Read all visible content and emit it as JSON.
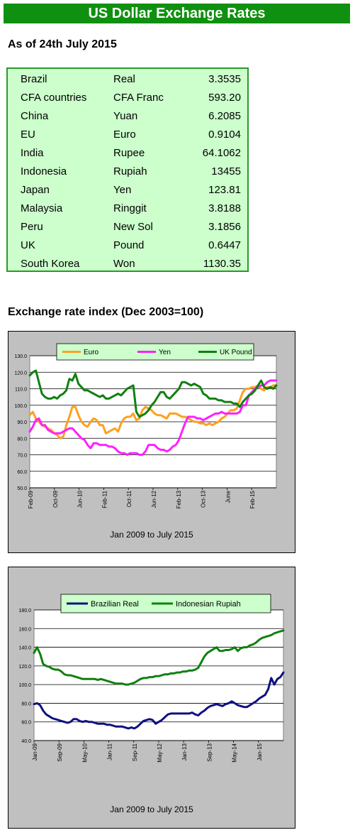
{
  "header": {
    "title": "US Dollar Exchange Rates",
    "as_of": "As of 24th July 2015"
  },
  "rates": [
    {
      "country": "Brazil",
      "currency": "Real",
      "rate": "3.3535"
    },
    {
      "country": "CFA countries",
      "currency": "CFA Franc",
      "rate": "593.20"
    },
    {
      "country": "China",
      "currency": "Yuan",
      "rate": "6.2085"
    },
    {
      "country": "EU",
      "currency": "Euro",
      "rate": "0.9104"
    },
    {
      "country": "India",
      "currency": "Rupee",
      "rate": "64.1062"
    },
    {
      "country": "Indonesia",
      "currency": "Rupiah",
      "rate": "13455"
    },
    {
      "country": "Japan",
      "currency": "Yen",
      "rate": "123.81"
    },
    {
      "country": "Malaysia",
      "currency": "Ringgit",
      "rate": "3.8188"
    },
    {
      "country": "Peru",
      "currency": "New Sol",
      "rate": "3.1856"
    },
    {
      "country": "UK",
      "currency": "Pound",
      "rate": "0.6447"
    },
    {
      "country": "South Korea",
      "currency": "Won",
      "rate": "1130.35"
    }
  ],
  "index_title": "Exchange rate index (Dec 2003=100)",
  "chart_data": [
    {
      "type": "line",
      "xlabel": "Jan 2009 to July 2015",
      "x_tick_labels": [
        "Feb-09",
        "Oct-09",
        "Jun-10",
        "Feb-11",
        "Oct-11",
        "Jun-12",
        "Feb-13",
        "Oct-13",
        "June",
        "Feb-15"
      ],
      "ylim": [
        50,
        130
      ],
      "y_ticks": [
        "130.0",
        "120.0",
        "110.0",
        "100.0",
        "90.0",
        "80.0",
        "70.0",
        "60.0",
        "50.0"
      ],
      "grid": true,
      "legend": "top",
      "series": [
        {
          "name": "Euro",
          "color": "#ffa020",
          "values": [
            94,
            96,
            92,
            90,
            88,
            87,
            86,
            85,
            83,
            82,
            80,
            81,
            88,
            93,
            99,
            99,
            94,
            90,
            88,
            87,
            90,
            92,
            91,
            88,
            88,
            83,
            84,
            85,
            86,
            84,
            89,
            92,
            93,
            93,
            95,
            91,
            92,
            97,
            99,
            98,
            97,
            95,
            94,
            94,
            93,
            92,
            95,
            95,
            95,
            94,
            93,
            93,
            92,
            91,
            90,
            90,
            89,
            89,
            88,
            89,
            88,
            89,
            90,
            92,
            93,
            95,
            97,
            97,
            98,
            103,
            108,
            110,
            110,
            111,
            111,
            112,
            110,
            109,
            111,
            111,
            112,
            112
          ]
        },
        {
          "name": "Yen",
          "color": "#ff20ff",
          "values": [
            84,
            87,
            91,
            92,
            88,
            88,
            85,
            84,
            83,
            83,
            83,
            84,
            85,
            86,
            86,
            84,
            82,
            80,
            79,
            76,
            74,
            77,
            77,
            76,
            76,
            76,
            75,
            75,
            74,
            72,
            71,
            71,
            70,
            71,
            71,
            71,
            70,
            70,
            72,
            76,
            76,
            76,
            74,
            73,
            73,
            72,
            73,
            75,
            76,
            79,
            84,
            89,
            93,
            93,
            93,
            92,
            92,
            91,
            92,
            93,
            94,
            95,
            95,
            96,
            95,
            95,
            95,
            95,
            95,
            96,
            100,
            100,
            106,
            108,
            110,
            111,
            112,
            112,
            114,
            115,
            115,
            115
          ]
        },
        {
          "name": "UK Pound",
          "color": "#108010",
          "values": [
            118,
            120,
            121,
            114,
            107,
            105,
            104,
            104,
            105,
            104,
            106,
            107,
            109,
            116,
            115,
            119,
            113,
            111,
            109,
            109,
            108,
            107,
            106,
            105,
            106,
            104,
            104,
            105,
            106,
            107,
            106,
            108,
            110,
            111,
            112,
            96,
            93,
            94,
            95,
            97,
            100,
            102,
            105,
            108,
            108,
            105,
            104,
            106,
            108,
            110,
            114,
            114,
            113,
            112,
            113,
            112,
            111,
            107,
            106,
            104,
            104,
            104,
            103,
            103,
            102,
            102,
            102,
            101,
            101,
            99,
            102,
            104,
            106,
            107,
            109,
            112,
            115,
            111,
            110,
            111,
            110,
            112
          ]
        }
      ]
    },
    {
      "type": "line",
      "xlabel": "Jan 2009 to July 2015",
      "x_tick_labels": [
        "Jan-09",
        "Sep-09",
        "May-10",
        "Jan-11",
        "Sep-11",
        "May-12",
        "Jan-13",
        "Sep-13",
        "May-14",
        "Jan-15"
      ],
      "ylim": [
        40,
        180
      ],
      "y_ticks": [
        "180.0",
        "160.0",
        "140.0",
        "120.0",
        "100.0",
        "80.0",
        "60.0",
        "40.0"
      ],
      "grid": true,
      "legend": "top",
      "series": [
        {
          "name": "Brazilian Real",
          "color": "#101080",
          "values": [
            79,
            80,
            78,
            72,
            68,
            66,
            64,
            63,
            62,
            61,
            60,
            59,
            60,
            63,
            63,
            61,
            60,
            61,
            60,
            60,
            59,
            58,
            58,
            58,
            57,
            57,
            56,
            55,
            55,
            55,
            54,
            53,
            54,
            53,
            55,
            58,
            61,
            62,
            63,
            62,
            58,
            60,
            62,
            65,
            68,
            69,
            69,
            69,
            69,
            69,
            69,
            69,
            70,
            68,
            67,
            70,
            72,
            75,
            77,
            78,
            79,
            78,
            77,
            79,
            80,
            82,
            80,
            78,
            77,
            76,
            76,
            78,
            80,
            82,
            85,
            87,
            89,
            95,
            107,
            100,
            106,
            108,
            113
          ]
        },
        {
          "name": "Indonesian Rupiah",
          "color": "#108010",
          "values": [
            134,
            140,
            133,
            122,
            120,
            119,
            117,
            116,
            116,
            114,
            111,
            110,
            110,
            109,
            108,
            107,
            106,
            106,
            106,
            106,
            106,
            105,
            106,
            105,
            104,
            103,
            102,
            101,
            101,
            101,
            100,
            100,
            101,
            102,
            104,
            106,
            107,
            107,
            108,
            108,
            109,
            109,
            110,
            111,
            111,
            112,
            112,
            113,
            113,
            114,
            114,
            115,
            115,
            116,
            118,
            124,
            130,
            134,
            136,
            138,
            140,
            136,
            136,
            137,
            137,
            138,
            140,
            136,
            139,
            140,
            140,
            142,
            143,
            145,
            148,
            150,
            151,
            152,
            153,
            155,
            156,
            157,
            158
          ]
        }
      ]
    }
  ]
}
